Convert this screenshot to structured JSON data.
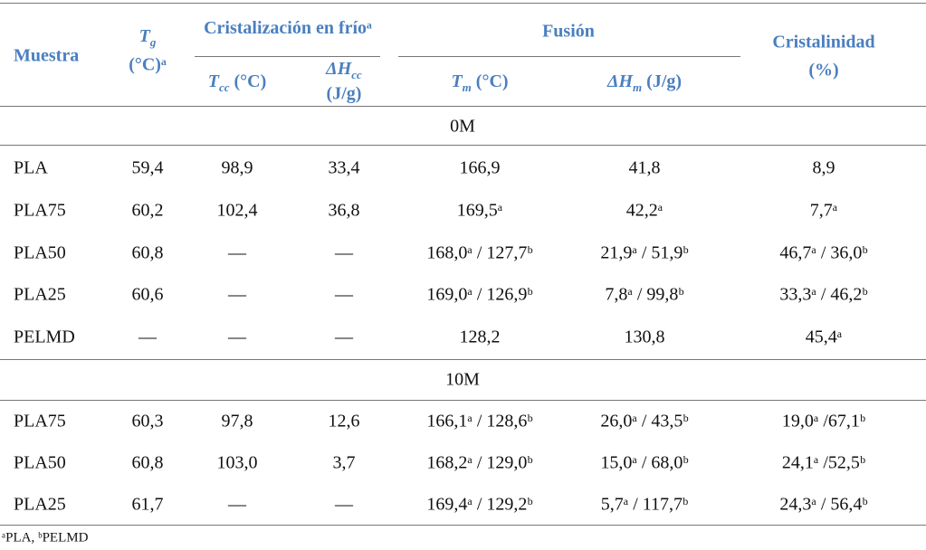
{
  "header": {
    "muestra": "Muestra",
    "tg": {
      "symbol": "T",
      "sub": "g",
      "unit": "(°C)ᵃ"
    },
    "cristalizacion": "Cristalización en fríoᵃ",
    "tcc": {
      "symbol": "T",
      "sub": "cc",
      "unit": "(°C)"
    },
    "dhcc": {
      "symbol": "ΔH",
      "sub": "cc",
      "unit": "(J/g)"
    },
    "fusion": "Fusión",
    "tm": {
      "symbol": "T",
      "sub": "m",
      "unit": "(°C)"
    },
    "dhm": {
      "symbol": "ΔH",
      "sub": "m",
      "unit": "(J/g)"
    },
    "cristalinidad": "Cristalinidad",
    "cristalinidad_unit": "(%)"
  },
  "sections": [
    {
      "label": "0M",
      "rows": [
        [
          "PLA",
          "59,4",
          "98,9",
          "33,4",
          "166,9",
          "41,8",
          "8,9"
        ],
        [
          "PLA75",
          "60,2",
          "102,4",
          "36,8",
          "169,5ᵃ",
          "42,2ᵃ",
          "7,7ᵃ"
        ],
        [
          "PLA50",
          "60,8",
          "—",
          "—",
          "168,0ᵃ / 127,7ᵇ",
          "21,9ᵃ / 51,9ᵇ",
          "46,7ᵃ / 36,0ᵇ"
        ],
        [
          "PLA25",
          "60,6",
          "—",
          "—",
          "169,0ᵃ / 126,9ᵇ",
          "7,8ᵃ / 99,8ᵇ",
          "33,3ᵃ / 46,2ᵇ"
        ],
        [
          "PELMD",
          "—",
          "—",
          "—",
          "128,2",
          "130,8",
          "45,4ᵃ"
        ]
      ]
    },
    {
      "label": "10M",
      "rows": [
        [
          "PLA75",
          "60,3",
          "97,8",
          "12,6",
          "166,1ᵃ / 128,6ᵇ",
          "26,0ᵃ / 43,5ᵇ",
          "19,0ᵃ /67,1ᵇ"
        ],
        [
          "PLA50",
          "60,8",
          "103,0",
          "3,7",
          "168,2ᵃ / 129,0ᵇ",
          "15,0ᵃ / 68,0ᵇ",
          "24,1ᵃ /52,5ᵇ"
        ],
        [
          "PLA25",
          "61,7",
          "—",
          "—",
          "169,4ᵃ / 129,2ᵇ",
          "5,7ᵃ / 117,7ᵇ",
          "24,3ᵃ / 56,4ᵇ"
        ]
      ]
    }
  ],
  "footnote": "ᵃPLA, ᵇPELMD"
}
